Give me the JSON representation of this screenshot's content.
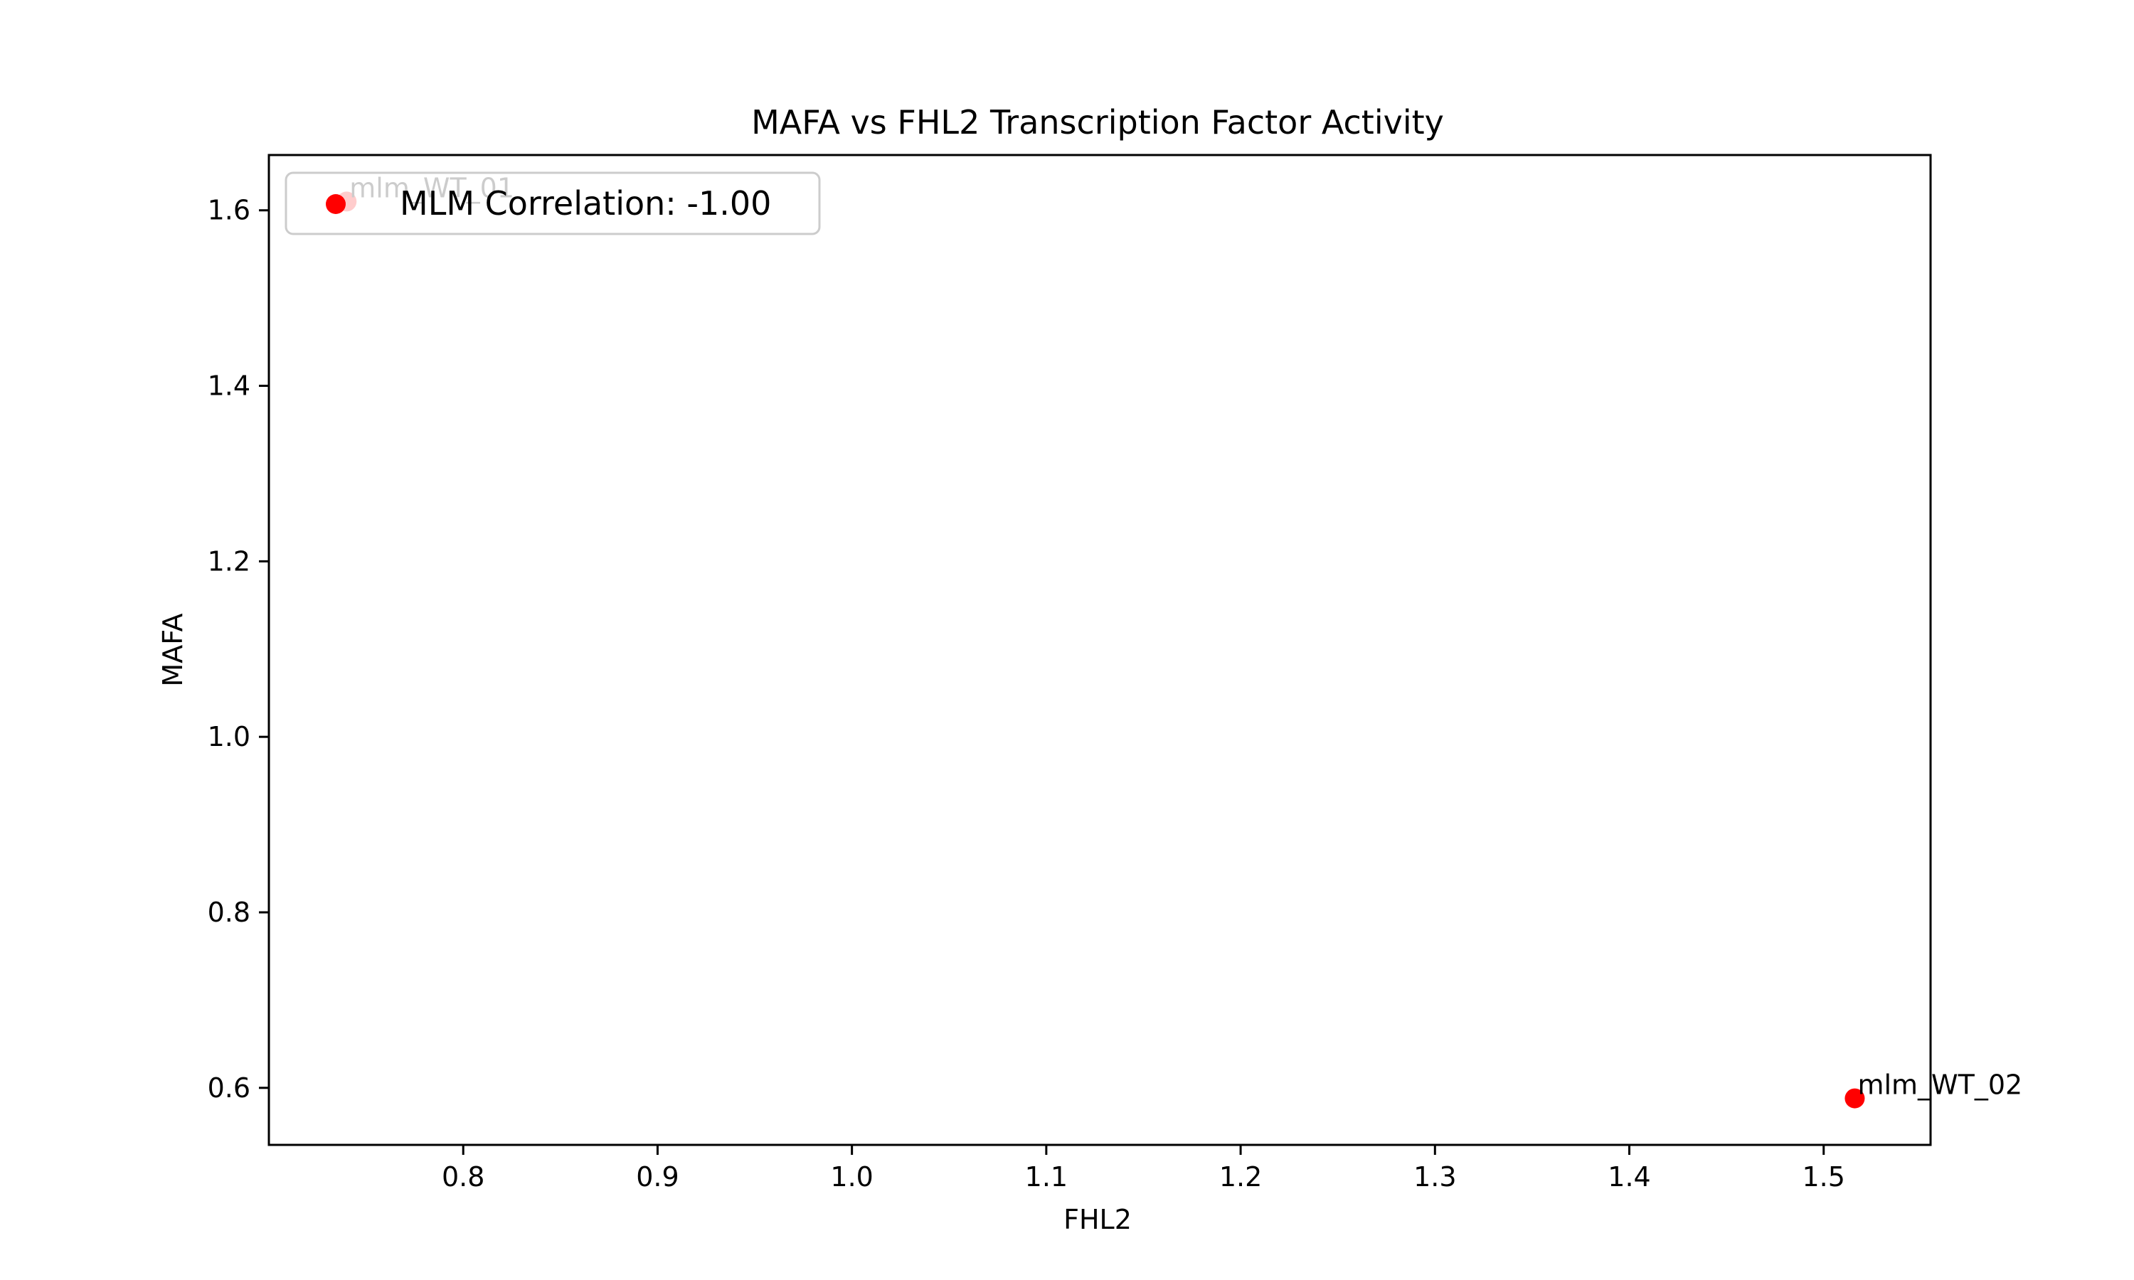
{
  "chart_data": {
    "type": "scatter",
    "title": "MAFA vs FHL2 Transcription Factor Activity",
    "xlabel": "FHL2",
    "ylabel": "MAFA",
    "xlim": [
      0.7,
      1.555
    ],
    "ylim": [
      0.535,
      1.663
    ],
    "xticks": [
      0.8,
      0.9,
      1.0,
      1.1,
      1.2,
      1.3,
      1.4,
      1.5
    ],
    "yticks": [
      0.6,
      0.8,
      1.0,
      1.2,
      1.4,
      1.6
    ],
    "grid": false,
    "legend": {
      "position": "top-left"
    },
    "series": [
      {
        "name": "MLM Correlation: -1.00",
        "color": "#ff0000",
        "points": [
          {
            "x": 0.74,
            "y": 1.61,
            "label": "mlm_WT_01"
          },
          {
            "x": 1.516,
            "y": 0.588,
            "label": "mlm_WT_02"
          }
        ]
      }
    ]
  }
}
